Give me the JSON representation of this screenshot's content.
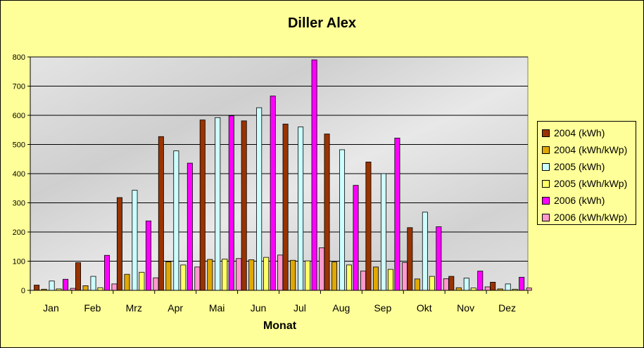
{
  "chart_data": {
    "type": "bar",
    "title": "Diller Alex",
    "xlabel": "Monat",
    "ylabel": "",
    "ylim": [
      0,
      800
    ],
    "yticks": [
      0,
      100,
      200,
      300,
      400,
      500,
      600,
      700,
      800
    ],
    "grid": true,
    "legend_position": "right",
    "categories": [
      "Jan",
      "Feb",
      "Mrz",
      "Apr",
      "Mai",
      "Jun",
      "Jul",
      "Aug",
      "Sep",
      "Okt",
      "Nov",
      "Dez"
    ],
    "series": [
      {
        "name": "2004 (kWh)",
        "color": "#993300",
        "values": [
          18,
          95,
          318,
          527,
          584,
          581,
          570,
          536,
          440,
          215,
          48,
          28
        ]
      },
      {
        "name": "2004 (kWh/kWp)",
        "color": "#e0a800",
        "values": [
          4,
          16,
          55,
          98,
          106,
          105,
          103,
          97,
          80,
          39,
          9,
          5
        ]
      },
      {
        "name": "2005 (kWh)",
        "color": "#ccffff",
        "values": [
          32,
          48,
          343,
          478,
          592,
          626,
          560,
          482,
          400,
          268,
          42,
          22
        ]
      },
      {
        "name": "2005 (kWh/kWp)",
        "color": "#ffff66",
        "values": [
          5,
          9,
          62,
          87,
          107,
          113,
          101,
          87,
          72,
          48,
          8,
          4
        ]
      },
      {
        "name": "2006 (kWh)",
        "color": "#ff00ff",
        "values": [
          38,
          120,
          238,
          436,
          598,
          666,
          790,
          360,
          522,
          218,
          66,
          45
        ]
      },
      {
        "name": "2006 (kWh/kWp)",
        "color": "#ff99cc",
        "values": [
          7,
          22,
          43,
          80,
          109,
          121,
          146,
          66,
          95,
          40,
          12,
          8
        ]
      }
    ]
  }
}
